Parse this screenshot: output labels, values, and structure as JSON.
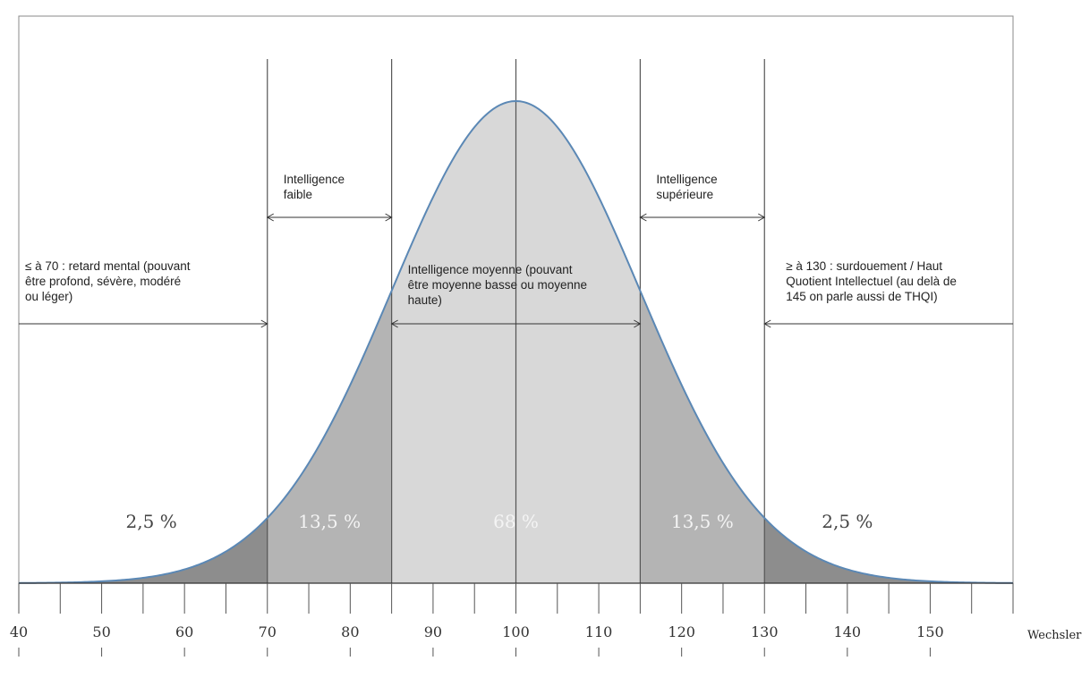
{
  "chart_data": {
    "type": "area",
    "title": "",
    "xlabel": "Wechsler",
    "ylabel": "",
    "xlim": [
      40,
      160
    ],
    "distribution": {
      "kind": "normal",
      "mean": 100,
      "sd": 15
    },
    "x_ticks": [
      40,
      50,
      60,
      70,
      80,
      90,
      100,
      110,
      120,
      130,
      140,
      150
    ],
    "boundaries": [
      70,
      85,
      100,
      115,
      130
    ],
    "regions": [
      {
        "from": 40,
        "to": 70,
        "percent_label": "2,5 %"
      },
      {
        "from": 70,
        "to": 85,
        "percent_label": "13,5 %"
      },
      {
        "from": 85,
        "to": 115,
        "percent_label": "68 %"
      },
      {
        "from": 115,
        "to": 130,
        "percent_label": "13,5 %"
      },
      {
        "from": 130,
        "to": 160,
        "percent_label": "2,5 %"
      }
    ],
    "annotations": [
      {
        "from": 40,
        "to": 70,
        "lines": [
          "≤ à 70 : retard mental (pouvant",
          "être profond, sévère, modéré",
          "ou léger)"
        ]
      },
      {
        "from": 70,
        "to": 85,
        "lines": [
          "Intelligence",
          "faible"
        ]
      },
      {
        "from": 85,
        "to": 115,
        "lines": [
          "Intelligence moyenne (pouvant",
          "être moyenne basse ou moyenne",
          "haute)"
        ]
      },
      {
        "from": 115,
        "to": 130,
        "lines": [
          "Intelligence",
          "supérieure"
        ]
      },
      {
        "from": 130,
        "to": 160,
        "lines": [
          "≥ à 130 : surdouement / Haut",
          "Quotient Intellectuel (au delà de",
          "145 on parle aussi de THQI)"
        ]
      }
    ],
    "colors": {
      "curve": "#5b88b5",
      "tails": "#8d8d8d",
      "mid_bands": "#b4b4b4",
      "center": "#d8d8d8",
      "gridline": "#555555",
      "pct_dark": "#444444",
      "pct_light": "#f4f4f4"
    }
  }
}
